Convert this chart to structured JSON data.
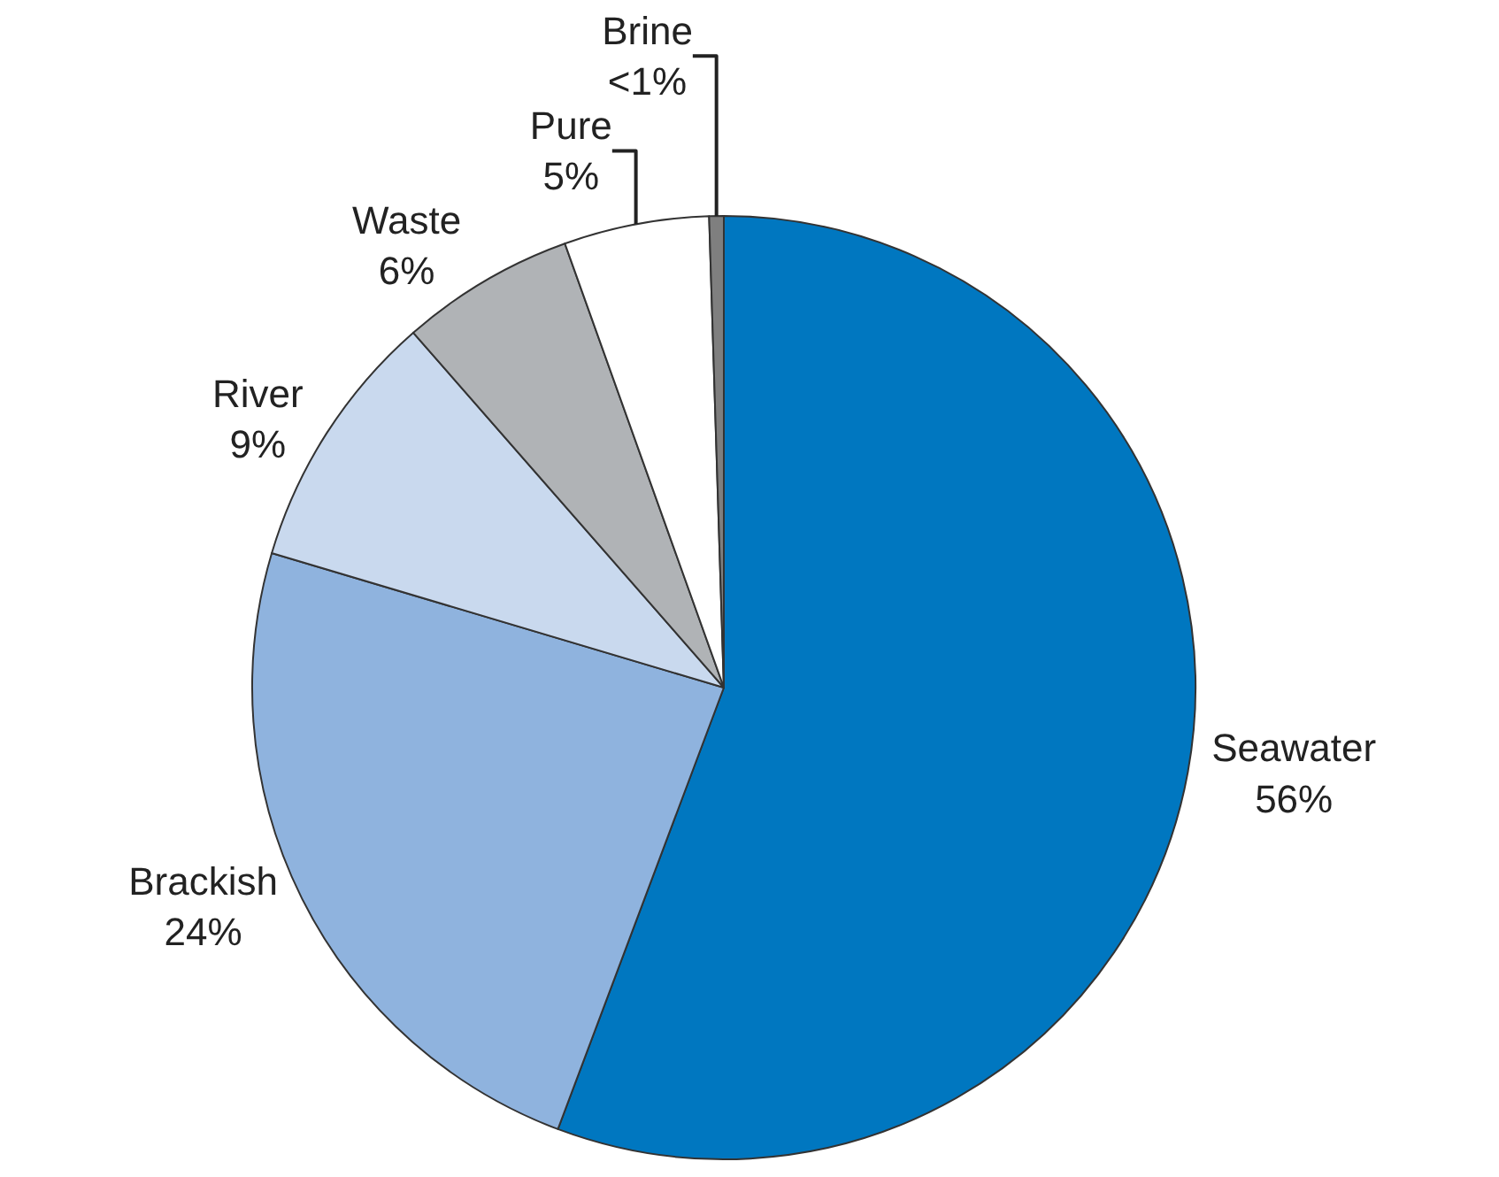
{
  "chart_data": {
    "type": "pie",
    "categories": [
      "Seawater",
      "Brackish",
      "River",
      "Waste",
      "Pure",
      "Brine"
    ],
    "values": [
      56,
      24,
      9,
      6,
      5,
      0.5
    ],
    "value_labels": [
      "56%",
      "24%",
      "9%",
      "6%",
      "5%",
      "<1%"
    ],
    "colors": [
      "#0077c0",
      "#8fb3de",
      "#c9d9ee",
      "#b0b3b6",
      "#ffffff",
      "#7f7f7f"
    ],
    "legend": false
  }
}
